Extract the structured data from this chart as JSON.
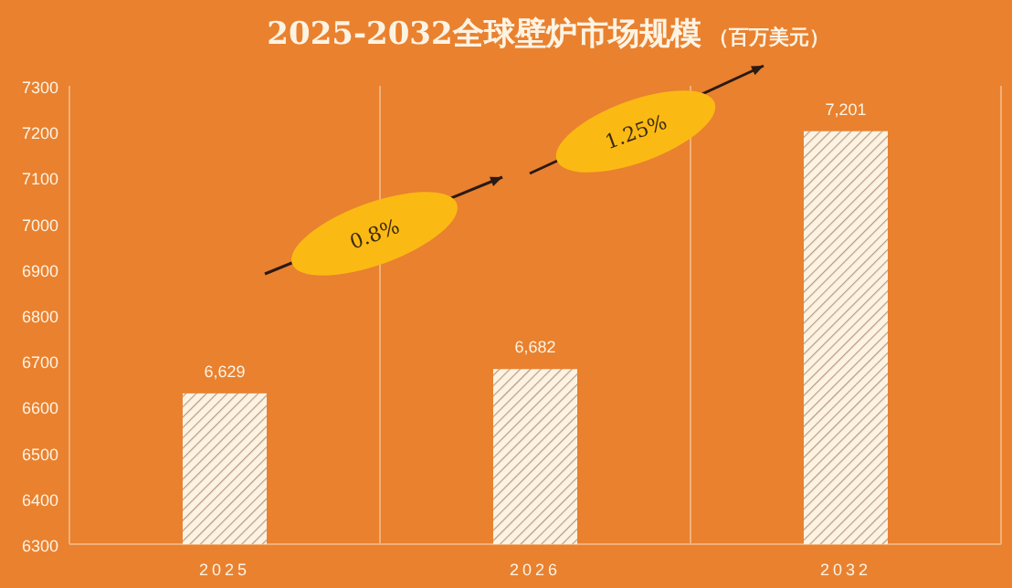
{
  "chart_data": {
    "type": "bar",
    "title": "2025-2032全球壁炉市场规模",
    "subtitle": "（百万美元）",
    "categories": [
      "2025",
      "2026",
      "2032"
    ],
    "values": [
      6629,
      6682,
      7201
    ],
    "value_labels": [
      "6,629",
      "6,682",
      "7,201"
    ],
    "color": "#fdf3e3",
    "ylim": [
      6300,
      7300
    ],
    "yticks": [
      6300,
      6400,
      6500,
      6600,
      6700,
      6800,
      6900,
      7000,
      7100,
      7200,
      7300
    ],
    "grid": "x",
    "annotations": [
      "0.8%",
      "1.25%"
    ]
  }
}
